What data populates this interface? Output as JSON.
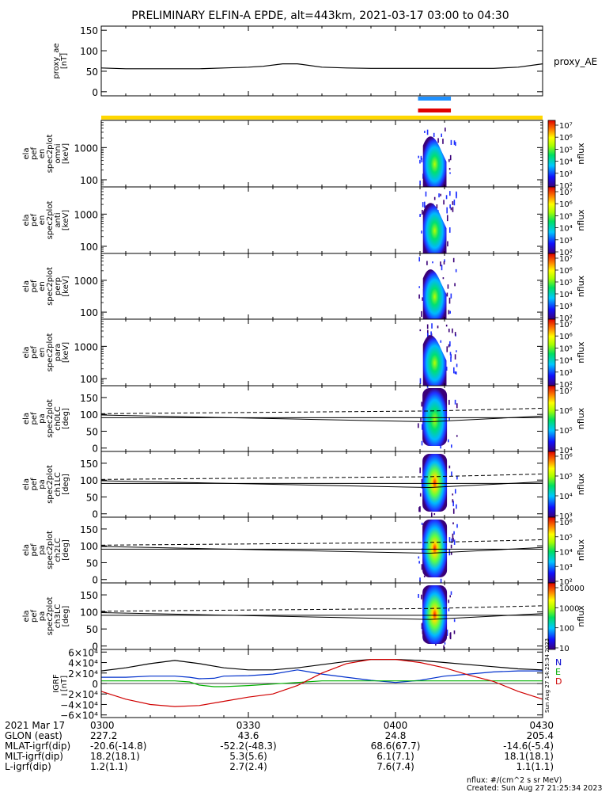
{
  "title": "PRELIMINARY ELFIN-A EPDE, alt=443km, 2021-03-17 03:00 to 04:30",
  "colors": {
    "yellow_bar": "#ffd700",
    "blue_bar": "#1e90ff",
    "red_bar": "#e00000",
    "N": "#0000cc",
    "E": "#00aa00",
    "D": "#cc0000"
  },
  "chart_data": [
    {
      "id": "proxy_ae",
      "type": "line",
      "ylabel": [
        "proxy_ae",
        "[nT]"
      ],
      "legend": "proxy_AE",
      "ylim": [
        -10,
        160
      ],
      "yticks": [
        0,
        50,
        100,
        150
      ],
      "x_minutes": [
        0,
        5,
        10,
        15,
        20,
        25,
        30,
        33,
        37,
        40,
        45,
        50,
        55,
        60,
        65,
        70,
        75,
        80,
        85,
        90
      ],
      "values": [
        58,
        56,
        56,
        56,
        56,
        58,
        60,
        62,
        68,
        68,
        60,
        58,
        57,
        57,
        57,
        57,
        57,
        57,
        60,
        68
      ]
    },
    {
      "id": "omni",
      "type": "heatmap",
      "ylabel": [
        "ela",
        "pef",
        "en",
        "spec2plot",
        "omni",
        "[keV]"
      ],
      "yscale": "log",
      "ylim": [
        60,
        7000
      ],
      "yticks": [
        100,
        1000
      ],
      "cbar": {
        "label": "nflux",
        "ticks": [
          "10⁷",
          "10⁶",
          "10⁵",
          "10⁴",
          "10³",
          "10²"
        ]
      }
    },
    {
      "id": "anti",
      "type": "heatmap",
      "ylabel": [
        "ela",
        "pef",
        "en",
        "spec2plot",
        "anti",
        "[keV]"
      ],
      "yscale": "log",
      "ylim": [
        60,
        7000
      ],
      "yticks": [
        100,
        1000
      ],
      "cbar": {
        "label": "nflux",
        "ticks": [
          "10⁷",
          "10⁶",
          "10⁵",
          "10⁴",
          "10³",
          "10²"
        ]
      }
    },
    {
      "id": "perp",
      "type": "heatmap",
      "ylabel": [
        "ela",
        "pef",
        "en",
        "spec2plot",
        "perp",
        "[keV]"
      ],
      "yscale": "log",
      "ylim": [
        60,
        7000
      ],
      "yticks": [
        100,
        1000
      ],
      "cbar": {
        "label": "nflux",
        "ticks": [
          "10⁷",
          "10⁶",
          "10⁵",
          "10⁴",
          "10³",
          "10²"
        ]
      }
    },
    {
      "id": "para",
      "type": "heatmap",
      "ylabel": [
        "ela",
        "pef",
        "en",
        "spec2plot",
        "para",
        "[keV]"
      ],
      "yscale": "log",
      "ylim": [
        60,
        7000
      ],
      "yticks": [
        100,
        1000
      ],
      "cbar": {
        "label": "nflux",
        "ticks": [
          "10⁷",
          "10⁶",
          "10⁵",
          "10⁴",
          "10³",
          "10²"
        ]
      }
    },
    {
      "id": "ch0LC",
      "type": "heatmap",
      "ylabel": [
        "ela",
        "pef",
        "pa",
        "spec2plot",
        "ch0LC",
        "[deg]"
      ],
      "ylim": [
        -10,
        185
      ],
      "yticks": [
        0,
        50,
        100,
        150
      ],
      "cbar": {
        "label": "nflux",
        "ticks": [
          "10⁷",
          "10⁶",
          "10⁵",
          "10⁴"
        ]
      }
    },
    {
      "id": "ch1LC",
      "type": "heatmap",
      "ylabel": [
        "ela",
        "pef",
        "pa",
        "spec2plot",
        "ch1LC",
        "[deg]"
      ],
      "ylim": [
        -10,
        185
      ],
      "yticks": [
        0,
        50,
        100,
        150
      ],
      "cbar": {
        "label": "nflux",
        "ticks": [
          "10⁶",
          "10⁵",
          "10⁴",
          "10³"
        ]
      }
    },
    {
      "id": "ch2LC",
      "type": "heatmap",
      "ylabel": [
        "ela",
        "pef",
        "pa",
        "spec2plot",
        "ch2LC",
        "[deg]"
      ],
      "ylim": [
        -10,
        185
      ],
      "yticks": [
        0,
        50,
        100,
        150
      ],
      "cbar": {
        "label": "nflux",
        "ticks": [
          "10⁶",
          "10⁵",
          "10⁴",
          "10³",
          "10²"
        ]
      }
    },
    {
      "id": "ch3LC",
      "type": "heatmap",
      "ylabel": [
        "ela",
        "pef",
        "pa",
        "spec2plot",
        "ch3LC",
        "[deg]"
      ],
      "ylim": [
        -10,
        185
      ],
      "yticks": [
        0,
        50,
        100,
        150
      ],
      "cbar": {
        "label": "nflux",
        "ticks": [
          "10000",
          "1000",
          "100",
          "10"
        ]
      }
    },
    {
      "id": "igrf",
      "type": "line",
      "ylabel": [
        "IGRF",
        "[nT]"
      ],
      "ylim": [
        -65000,
        65000
      ],
      "yticks": [
        -60000,
        -40000,
        -20000,
        0,
        20000,
        40000,
        60000
      ],
      "ytick_labels": [
        "−6×10⁴",
        "−4×10⁴",
        "−2×10⁴",
        "0",
        "2×10⁴",
        "4×10⁴",
        "6×10⁴"
      ],
      "series": [
        {
          "name": "N",
          "x": [
            0,
            5,
            10,
            15,
            20,
            25,
            30,
            35,
            40,
            45,
            50,
            55,
            60,
            65,
            70,
            75,
            80,
            85,
            90
          ],
          "y": [
            24000,
            30000,
            38000,
            44000,
            38000,
            30000,
            26000,
            26000,
            30000,
            36000,
            42000,
            46000,
            46000,
            44000,
            40000,
            36000,
            32000,
            28000,
            26000
          ]
        },
        {
          "name": "E",
          "x": [
            0,
            5,
            10,
            15,
            18,
            20,
            23,
            25,
            30,
            35,
            40,
            45,
            50,
            55,
            60,
            65,
            70,
            75,
            80,
            85,
            90
          ],
          "y": [
            12000,
            12000,
            14000,
            14000,
            12000,
            9000,
            10000,
            14000,
            15000,
            18000,
            26000,
            18000,
            12000,
            6000,
            2000,
            6000,
            14000,
            18000,
            22000,
            24000,
            24000
          ]
        },
        {
          "name": "D",
          "x": [
            0,
            5,
            10,
            15,
            18,
            20,
            23,
            25,
            30,
            35,
            40,
            45,
            50,
            55,
            60,
            65,
            70,
            75,
            80,
            85,
            90
          ],
          "y": [
            5000,
            5000,
            5000,
            5000,
            3000,
            -3000,
            -6000,
            -6000,
            -4000,
            -1000,
            2000,
            5000,
            5000,
            5000,
            5000,
            5000,
            5000,
            5000,
            5000,
            5000,
            5000
          ]
        },
        {
          "name": "D",
          "x": [
            0,
            5,
            10,
            15,
            20,
            25,
            30,
            35,
            40,
            45,
            50,
            55,
            60,
            65,
            70,
            75,
            80,
            85,
            90
          ],
          "y": [
            -15000,
            -30000,
            -40000,
            -44000,
            -42000,
            -34000,
            -26000,
            -20000,
            -4000,
            20000,
            38000,
            46000,
            46000,
            40000,
            30000,
            16000,
            4000,
            -15000,
            -30000
          ]
        }
      ]
    }
  ],
  "xaxis": {
    "tick_labels": [
      "0300",
      "0330",
      "0400",
      "0430"
    ],
    "tick_minutes": [
      0,
      30,
      60,
      90
    ],
    "rows": [
      {
        "label": "2021 Mar 17",
        "values": [
          "0300",
          "0330",
          "0400",
          "0430"
        ]
      },
      {
        "label": "GLON (east)",
        "values": [
          "227.2",
          "43.6",
          "24.8",
          "205.4"
        ]
      },
      {
        "label": "MLAT-igrf(dip)",
        "values": [
          "-20.6(-14.8)",
          "-52.2(-48.3)",
          "68.6(67.7)",
          "-14.6(-5.4)"
        ]
      },
      {
        "label": "MLT-igrf(dip)",
        "values": [
          "18.2(18.1)",
          "5.3(5.6)",
          "6.1(7.1)",
          "18.1(18.1)"
        ]
      },
      {
        "label": "L-igrf(dip)",
        "values": [
          "1.2(1.1)",
          "2.7(2.4)",
          "7.6(7.4)",
          "1.1(1.1)"
        ]
      }
    ]
  },
  "igrf_legend": [
    "N",
    "E",
    "D"
  ],
  "side_stamp": "Sun Aug 27 14:25:34 2023",
  "footer": {
    "units": "nflux: #/(cm^2 s sr MeV)",
    "created": "Created: Sun Aug 27 21:25:34 2023"
  }
}
